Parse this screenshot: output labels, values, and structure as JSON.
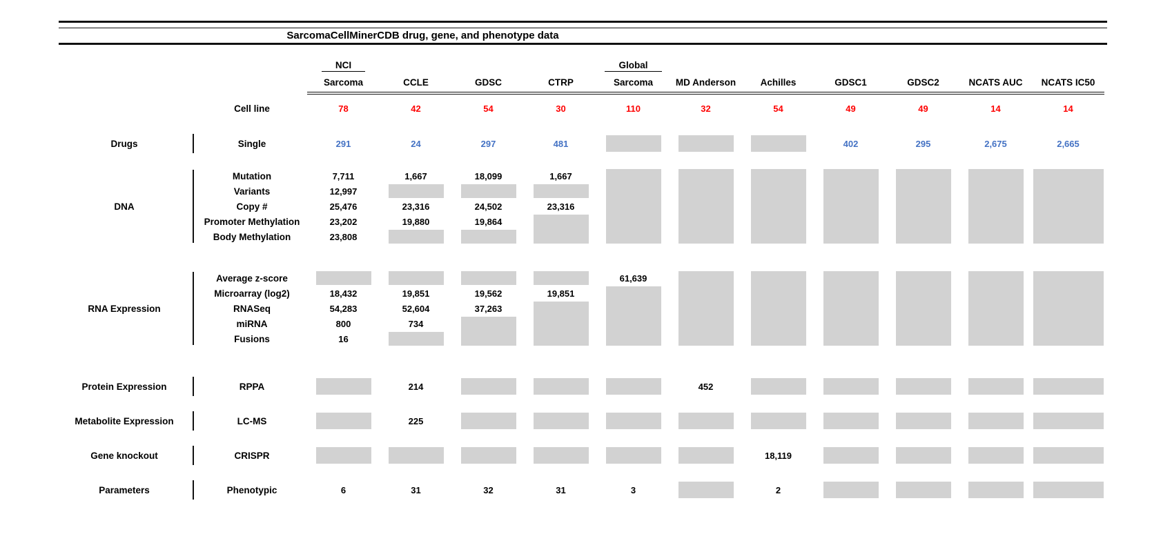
{
  "title": "SarcomaCellMinerCDB drug, gene, and phenotype data",
  "colors": {
    "count_red": "#fe0000",
    "drug_blue": "#4472c4",
    "missing_gray": "#d2d2d2",
    "line_black": "#111111"
  },
  "chart_data": {
    "type": "table",
    "title": "SarcomaCellMinerCDB drug, gene, and phenotype data",
    "missing_marker": "G",
    "columns": [
      {
        "top": "NCI",
        "bottom": "Sarcoma",
        "underline_top": true
      },
      {
        "top": "",
        "bottom": "CCLE",
        "underline_top": false
      },
      {
        "top": "",
        "bottom": "GDSC",
        "underline_top": false
      },
      {
        "top": "",
        "bottom": "CTRP",
        "underline_top": false
      },
      {
        "top": "Global",
        "bottom": "Sarcoma",
        "underline_top": true
      },
      {
        "top": "",
        "bottom": "MD Anderson",
        "underline_top": false
      },
      {
        "top": "",
        "bottom": "Achilles",
        "underline_top": false
      },
      {
        "top": "",
        "bottom": "GDSC1",
        "underline_top": false
      },
      {
        "top": "",
        "bottom": "GDSC2",
        "underline_top": false
      },
      {
        "top": "",
        "bottom": "NCATS AUC",
        "underline_top": false
      },
      {
        "top": "",
        "bottom": "NCATS IC50",
        "underline_top": false
      }
    ],
    "sections": [
      {
        "category": "",
        "bar": false,
        "color": "red",
        "rows": [
          {
            "label": "Cell line",
            "cells": [
              "78",
              "42",
              "54",
              "30",
              "110",
              "32",
              "54",
              "49",
              "49",
              "14",
              "14"
            ]
          }
        ]
      },
      {
        "category": "Drugs",
        "bar": true,
        "color": "blue",
        "rows": [
          {
            "label": "Single",
            "cells": [
              "291",
              "24",
              "297",
              "481",
              "G",
              "G",
              "G",
              "402",
              "295",
              "2,675",
              "2,665"
            ]
          }
        ]
      },
      {
        "category": "DNA",
        "bar": true,
        "color": "black",
        "rows": [
          {
            "label": "Mutation",
            "cells": [
              "7,711",
              "1,667",
              "18,099",
              "1,667",
              "G",
              "G",
              "G",
              "G",
              "G",
              "G",
              "G"
            ]
          },
          {
            "label": "Variants",
            "cells": [
              "12,997",
              "G",
              "G",
              "G",
              "G",
              "G",
              "G",
              "G",
              "G",
              "G",
              "G"
            ]
          },
          {
            "label": "Copy #",
            "cells": [
              "25,476",
              "23,316",
              "24,502",
              "23,316",
              "G",
              "G",
              "G",
              "G",
              "G",
              "G",
              "G"
            ]
          },
          {
            "label": "Promoter Methylation",
            "cells": [
              "23,202",
              "19,880",
              "19,864",
              "G",
              "G",
              "G",
              "G",
              "G",
              "G",
              "G",
              "G"
            ]
          },
          {
            "label": "Body Methylation",
            "cells": [
              "23,808",
              "G",
              "G",
              "G",
              "G",
              "G",
              "G",
              "G",
              "G",
              "G",
              "G"
            ]
          }
        ]
      },
      {
        "category": "RNA Expression",
        "bar": true,
        "color": "black",
        "rows": [
          {
            "label": "Average z-score",
            "cells": [
              "G",
              "G",
              "G",
              "G",
              "61,639",
              "G",
              "G",
              "G",
              "G",
              "G",
              "G"
            ]
          },
          {
            "label": "Microarray (log2)",
            "cells": [
              "18,432",
              "19,851",
              "19,562",
              "19,851",
              "G",
              "G",
              "G",
              "G",
              "G",
              "G",
              "G"
            ]
          },
          {
            "label": "RNASeq",
            "cells": [
              "54,283",
              "52,604",
              "37,263",
              "G",
              "G",
              "G",
              "G",
              "G",
              "G",
              "G",
              "G"
            ]
          },
          {
            "label": "miRNA",
            "cells": [
              "800",
              "734",
              "G",
              "G",
              "G",
              "G",
              "G",
              "G",
              "G",
              "G",
              "G"
            ]
          },
          {
            "label": "Fusions",
            "cells": [
              "16",
              "G",
              "G",
              "G",
              "G",
              "G",
              "G",
              "G",
              "G",
              "G",
              "G"
            ]
          }
        ]
      },
      {
        "category": "Protein Expression",
        "bar": true,
        "color": "black",
        "rows": [
          {
            "label": "RPPA",
            "cells": [
              "G",
              "214",
              "G",
              "G",
              "G",
              "452",
              "G",
              "G",
              "G",
              "G",
              "G"
            ]
          }
        ]
      },
      {
        "category": "Metabolite Expression",
        "bar": true,
        "color": "black",
        "rows": [
          {
            "label": "LC-MS",
            "cells": [
              "G",
              "225",
              "G",
              "G",
              "G",
              "G",
              "G",
              "G",
              "G",
              "G",
              "G"
            ]
          }
        ]
      },
      {
        "category": "Gene knockout",
        "bar": true,
        "color": "black",
        "rows": [
          {
            "label": "CRISPR",
            "cells": [
              "G",
              "G",
              "G",
              "G",
              "G",
              "G",
              "18,119",
              "G",
              "G",
              "G",
              "G"
            ]
          }
        ]
      },
      {
        "category": "Parameters",
        "bar": true,
        "color": "black",
        "rows": [
          {
            "label": "Phenotypic",
            "cells": [
              "6",
              "31",
              "32",
              "31",
              "3",
              "G",
              "2",
              "G",
              "G",
              "G",
              "G"
            ]
          }
        ]
      }
    ]
  }
}
